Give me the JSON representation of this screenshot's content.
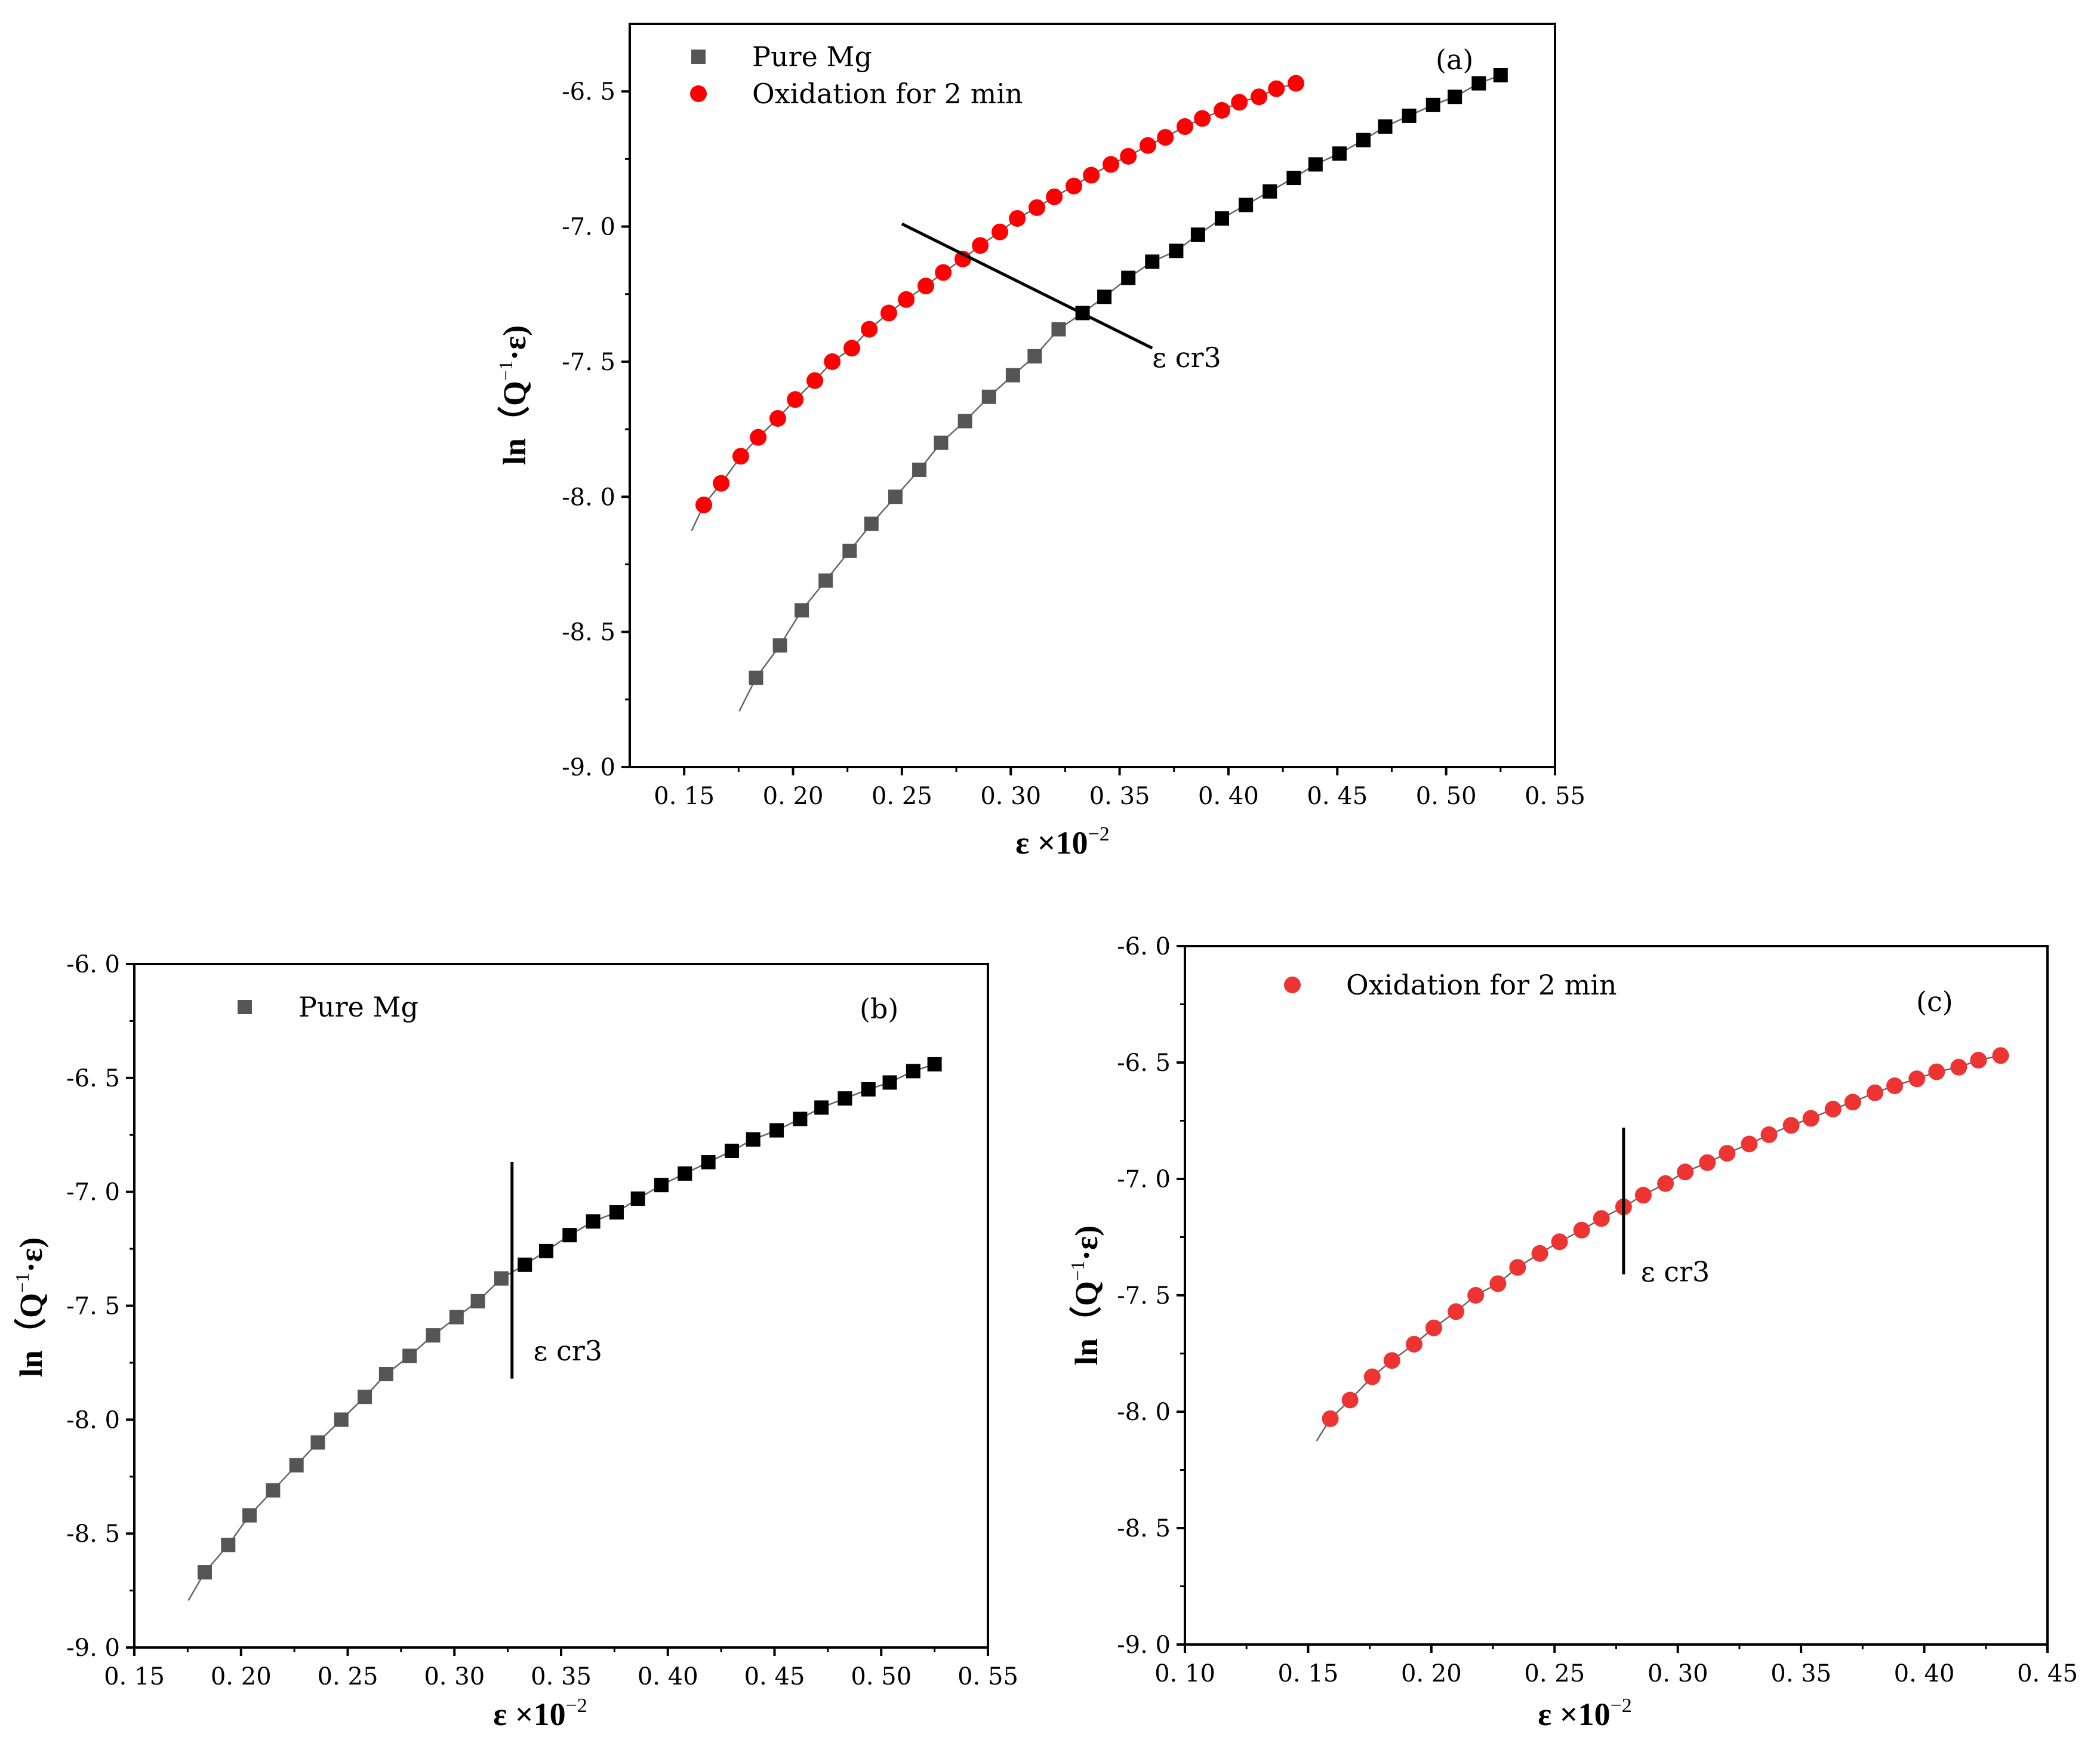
{
  "chart_data": [
    {
      "panel": "a",
      "type": "scatter",
      "tag": "(a)",
      "xlabel": "ε ×10",
      "xlabel_sup": "−2",
      "ylabel": "ln（Q",
      "ylabel_sup": "−1",
      "ylabel_tail": "·ε)",
      "xlim": [
        0.125,
        0.55
      ],
      "ylim": [
        -9.0,
        -6.25
      ],
      "xticks": [
        0.15,
        0.2,
        0.25,
        0.3,
        0.35,
        0.4,
        0.45,
        0.5,
        0.55
      ],
      "xtick_labels": [
        "0. 15",
        "0. 20",
        "0. 25",
        "0. 30",
        "0. 35",
        "0. 40",
        "0. 45",
        "0. 50",
        "0. 55"
      ],
      "yticks": [
        -9.0,
        -8.5,
        -8.0,
        -7.5,
        -7.0,
        -6.5
      ],
      "ytick_labels": [
        "-9. 0",
        "-8. 5",
        "-8. 0",
        "-7. 5",
        "-7. 0",
        "-6. 5"
      ],
      "legend": [
        {
          "label": "Pure Mg",
          "marker": "square",
          "color": "#555555"
        },
        {
          "label": "Oxidation for 2 min",
          "marker": "circle",
          "color": "#ff0000"
        }
      ],
      "annotation": {
        "text": "ε cr3",
        "x": 0.365,
        "y": -7.52
      },
      "marker_line": {
        "x1": 0.25,
        "y1": -6.99,
        "x2": 0.365,
        "y2": -7.45
      },
      "series": [
        {
          "name": "Pure Mg",
          "marker": "square",
          "color_early": "#555555",
          "color_late": "#000000",
          "split_x": 0.33,
          "x": [
            0.183,
            0.194,
            0.204,
            0.215,
            0.226,
            0.236,
            0.247,
            0.258,
            0.268,
            0.279,
            0.29,
            0.301,
            0.311,
            0.322,
            0.333,
            0.343,
            0.354,
            0.365,
            0.376,
            0.386,
            0.397,
            0.408,
            0.419,
            0.43,
            0.44,
            0.451,
            0.462,
            0.472,
            0.483,
            0.494,
            0.504,
            0.515,
            0.525
          ],
          "y": [
            -8.67,
            -8.55,
            -8.42,
            -8.31,
            -8.2,
            -8.1,
            -8.0,
            -7.9,
            -7.8,
            -7.72,
            -7.63,
            -7.55,
            -7.48,
            -7.38,
            -7.32,
            -7.26,
            -7.19,
            -7.13,
            -7.09,
            -7.03,
            -6.97,
            -6.92,
            -6.87,
            -6.82,
            -6.77,
            -6.73,
            -6.68,
            -6.63,
            -6.59,
            -6.55,
            -6.52,
            -6.47,
            -6.44
          ]
        },
        {
          "name": "Oxidation for 2 min",
          "marker": "circle",
          "color_early": "#ff0000",
          "color_late": "#ff0000",
          "split_x": 1.0,
          "x": [
            0.159,
            0.167,
            0.176,
            0.184,
            0.193,
            0.201,
            0.21,
            0.218,
            0.227,
            0.235,
            0.244,
            0.252,
            0.261,
            0.269,
            0.278,
            0.286,
            0.295,
            0.303,
            0.312,
            0.32,
            0.329,
            0.337,
            0.346,
            0.354,
            0.363,
            0.371,
            0.38,
            0.388,
            0.397,
            0.405,
            0.414,
            0.422,
            0.431
          ],
          "y": [
            -8.03,
            -7.95,
            -7.85,
            -7.78,
            -7.71,
            -7.64,
            -7.57,
            -7.5,
            -7.45,
            -7.38,
            -7.32,
            -7.27,
            -7.22,
            -7.17,
            -7.12,
            -7.07,
            -7.02,
            -6.97,
            -6.93,
            -6.89,
            -6.85,
            -6.81,
            -6.77,
            -6.74,
            -6.7,
            -6.67,
            -6.63,
            -6.6,
            -6.57,
            -6.54,
            -6.52,
            -6.49,
            -6.47
          ]
        }
      ]
    },
    {
      "panel": "b",
      "type": "scatter",
      "tag": "(b)",
      "xlabel": "ε ×10",
      "xlabel_sup": "−2",
      "ylabel": "ln（Q",
      "ylabel_sup": "−1",
      "ylabel_tail": "·ε)",
      "xlim": [
        0.15,
        0.55
      ],
      "ylim": [
        -9.0,
        -6.0
      ],
      "xticks": [
        0.15,
        0.2,
        0.25,
        0.3,
        0.35,
        0.4,
        0.45,
        0.5,
        0.55
      ],
      "xtick_labels": [
        "0. 15",
        "0. 20",
        "0. 25",
        "0. 30",
        "0. 35",
        "0. 40",
        "0. 45",
        "0. 50",
        "0. 55"
      ],
      "yticks": [
        -9.0,
        -8.5,
        -8.0,
        -7.5,
        -7.0,
        -6.5,
        -6.0
      ],
      "ytick_labels": [
        "-9. 0",
        "-8. 5",
        "-8. 0",
        "-7. 5",
        "-7. 0",
        "-6. 5",
        "-6. 0"
      ],
      "legend": [
        {
          "label": "Pure Mg",
          "marker": "square",
          "color": "#555555"
        }
      ],
      "annotation": {
        "text": "ε cr3",
        "x": 0.337,
        "y": -7.74
      },
      "marker_line": {
        "x1": 0.327,
        "y1": -6.87,
        "x2": 0.327,
        "y2": -7.82
      },
      "series": [
        {
          "name": "Pure Mg",
          "marker": "square",
          "color_early": "#555555",
          "color_late": "#000000",
          "split_x": 0.33,
          "x": [
            0.183,
            0.194,
            0.204,
            0.215,
            0.226,
            0.236,
            0.247,
            0.258,
            0.268,
            0.279,
            0.29,
            0.301,
            0.311,
            0.322,
            0.333,
            0.343,
            0.354,
            0.365,
            0.376,
            0.386,
            0.397,
            0.408,
            0.419,
            0.43,
            0.44,
            0.451,
            0.462,
            0.472,
            0.483,
            0.494,
            0.504,
            0.515,
            0.525
          ],
          "y": [
            -8.67,
            -8.55,
            -8.42,
            -8.31,
            -8.2,
            -8.1,
            -8.0,
            -7.9,
            -7.8,
            -7.72,
            -7.63,
            -7.55,
            -7.48,
            -7.38,
            -7.32,
            -7.26,
            -7.19,
            -7.13,
            -7.09,
            -7.03,
            -6.97,
            -6.92,
            -6.87,
            -6.82,
            -6.77,
            -6.73,
            -6.68,
            -6.63,
            -6.59,
            -6.55,
            -6.52,
            -6.47,
            -6.44
          ]
        }
      ]
    },
    {
      "panel": "c",
      "type": "scatter",
      "tag": "(c)",
      "xlabel": "ε ×10",
      "xlabel_sup": "−2",
      "ylabel": "ln（Q",
      "ylabel_sup": "−1",
      "ylabel_tail": "·ε)",
      "xlim": [
        0.1,
        0.45
      ],
      "ylim": [
        -9.0,
        -6.0
      ],
      "xticks": [
        0.1,
        0.15,
        0.2,
        0.25,
        0.3,
        0.35,
        0.4,
        0.45
      ],
      "xtick_labels": [
        "0. 10",
        "0. 15",
        "0. 20",
        "0. 25",
        "0. 30",
        "0. 35",
        "0. 40",
        "0. 45"
      ],
      "yticks": [
        -9.0,
        -8.5,
        -8.0,
        -7.5,
        -7.0,
        -6.5,
        -6.0
      ],
      "ytick_labels": [
        "-9. 0",
        "-8. 5",
        "-8. 0",
        "-7. 5",
        "-7. 0",
        "-6. 5",
        "-6. 0"
      ],
      "legend": [
        {
          "label": "Oxidation for 2 min",
          "marker": "circle",
          "color": "#ee3333"
        }
      ],
      "annotation": {
        "text": "ε cr3",
        "x": 0.285,
        "y": -7.44
      },
      "marker_line": {
        "x1": 0.278,
        "y1": -6.78,
        "x2": 0.278,
        "y2": -7.41
      },
      "series": [
        {
          "name": "Oxidation for 2 min",
          "marker": "circle",
          "color_early": "#ee3333",
          "color_late": "#ee3333",
          "split_x": 1.0,
          "x": [
            0.159,
            0.167,
            0.176,
            0.184,
            0.193,
            0.201,
            0.21,
            0.218,
            0.227,
            0.235,
            0.244,
            0.252,
            0.261,
            0.269,
            0.278,
            0.286,
            0.295,
            0.303,
            0.312,
            0.32,
            0.329,
            0.337,
            0.346,
            0.354,
            0.363,
            0.371,
            0.38,
            0.388,
            0.397,
            0.405,
            0.414,
            0.422,
            0.431
          ],
          "y": [
            -8.03,
            -7.95,
            -7.85,
            -7.78,
            -7.71,
            -7.64,
            -7.57,
            -7.5,
            -7.45,
            -7.38,
            -7.32,
            -7.27,
            -7.22,
            -7.17,
            -7.12,
            -7.07,
            -7.02,
            -6.97,
            -6.93,
            -6.89,
            -6.85,
            -6.81,
            -6.77,
            -6.74,
            -6.7,
            -6.67,
            -6.63,
            -6.6,
            -6.57,
            -6.54,
            -6.52,
            -6.49,
            -6.47
          ]
        }
      ]
    }
  ]
}
